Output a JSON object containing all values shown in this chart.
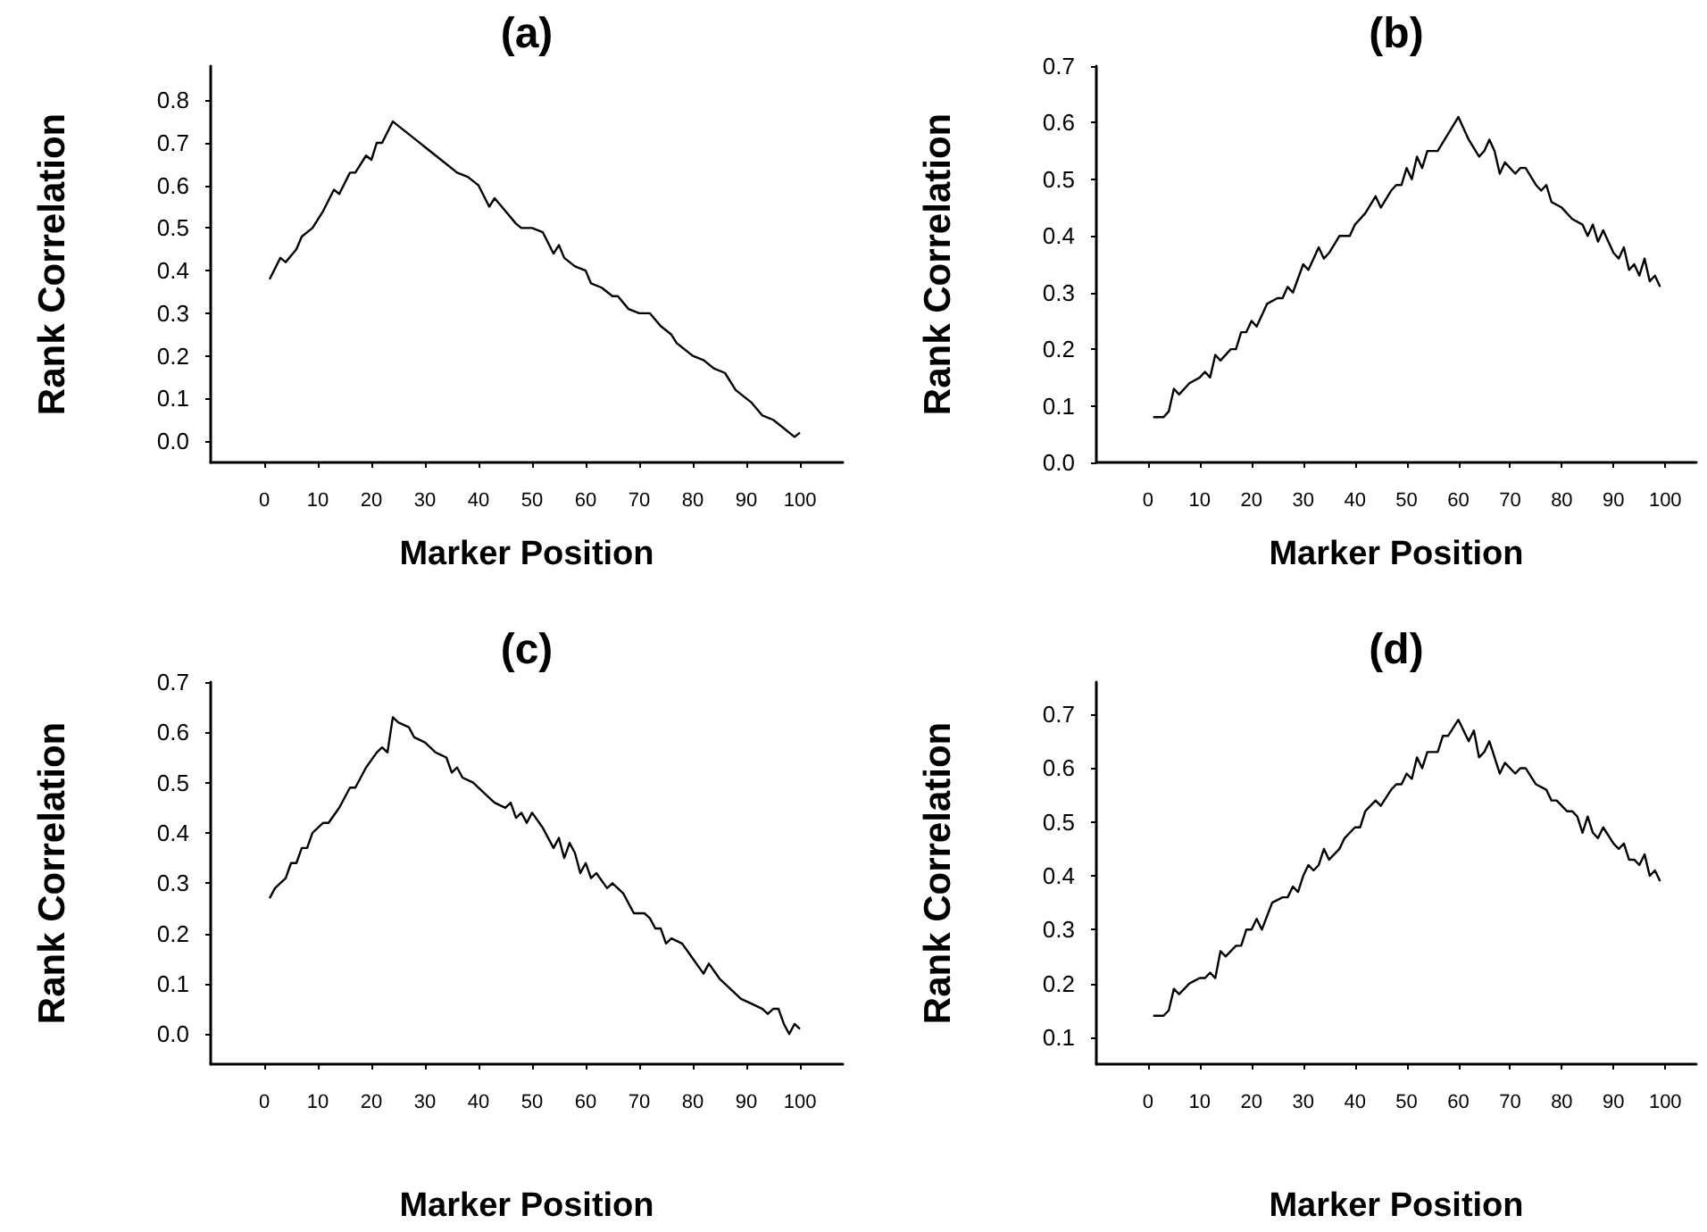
{
  "chart_data": [
    {
      "type": "line",
      "title": "(a)",
      "xlabel": "Marker Position",
      "ylabel": "Rank Correlation",
      "xlim": [
        -10,
        108
      ],
      "xticks": [
        0,
        10,
        20,
        30,
        40,
        50,
        60,
        70,
        80,
        90,
        100
      ],
      "ylim": [
        -0.05,
        0.88
      ],
      "yticks": [
        {
          "value": 0,
          "label": "0.0"
        },
        {
          "value": 0.1,
          "label": "0.1"
        },
        {
          "value": 0.2,
          "label": "0.2"
        },
        {
          "value": 0.3,
          "label": "0.3"
        },
        {
          "value": 0.4,
          "label": "0.4"
        },
        {
          "value": 0.5,
          "label": "0.5"
        },
        {
          "value": 0.6,
          "label": "0.6"
        },
        {
          "value": 0.7,
          "label": "0.7"
        },
        {
          "value": 0.8,
          "label": "0.8"
        }
      ],
      "x": [
        1,
        3,
        4,
        6,
        7,
        9,
        11,
        13,
        14,
        16,
        17,
        19,
        20,
        21,
        22,
        24,
        25,
        27,
        29,
        30,
        32,
        34,
        36,
        38,
        40,
        42,
        43,
        45,
        47,
        48,
        50,
        52,
        54,
        55,
        56,
        58,
        60,
        61,
        63,
        65,
        66,
        68,
        70,
        72,
        74,
        76,
        77,
        79,
        80,
        82,
        84,
        86,
        88,
        90,
        91,
        93,
        95,
        97,
        98,
        99,
        100
      ],
      "series": [
        {
          "color": "#000000",
          "values": [
            0.38,
            0.43,
            0.42,
            0.45,
            0.48,
            0.5,
            0.54,
            0.59,
            0.58,
            0.63,
            0.63,
            0.67,
            0.66,
            0.7,
            0.7,
            0.75,
            0.74,
            0.72,
            0.7,
            0.69,
            0.67,
            0.65,
            0.63,
            0.62,
            0.6,
            0.55,
            0.57,
            0.54,
            0.51,
            0.5,
            0.5,
            0.49,
            0.44,
            0.46,
            0.43,
            0.41,
            0.4,
            0.37,
            0.36,
            0.34,
            0.34,
            0.31,
            0.3,
            0.3,
            0.27,
            0.25,
            0.23,
            0.21,
            0.2,
            0.19,
            0.17,
            0.16,
            0.12,
            0.1,
            0.09,
            0.06,
            0.05,
            0.03,
            0.02,
            0.01,
            0.02
          ]
        }
      ]
    },
    {
      "type": "line",
      "title": "(b)",
      "xlabel": "Marker Position",
      "ylabel": "Rank Correlation",
      "xlim": [
        -10,
        106
      ],
      "xticks": [
        0,
        10,
        20,
        30,
        40,
        50,
        60,
        70,
        80,
        90,
        100
      ],
      "ylim": [
        0,
        0.7
      ],
      "yticks": [
        {
          "value": 0,
          "label": "0.0"
        },
        {
          "value": 0.1,
          "label": "0.1"
        },
        {
          "value": 0.2,
          "label": "0.2"
        },
        {
          "value": 0.3,
          "label": "0.3"
        },
        {
          "value": 0.4,
          "label": "0.4"
        },
        {
          "value": 0.5,
          "label": "0.5"
        },
        {
          "value": 0.6,
          "label": "0.6"
        },
        {
          "value": 0.7,
          "label": "0.7"
        }
      ],
      "x": [
        1,
        3,
        4,
        5,
        6,
        8,
        10,
        11,
        12,
        13,
        14,
        16,
        17,
        18,
        19,
        20,
        21,
        23,
        25,
        26,
        27,
        28,
        30,
        31,
        32,
        33,
        34,
        35,
        37,
        38,
        39,
        40,
        42,
        44,
        45,
        47,
        48,
        49,
        50,
        51,
        52,
        53,
        54,
        56,
        58,
        60,
        62,
        64,
        65,
        66,
        67,
        68,
        69,
        71,
        72,
        73,
        75,
        76,
        77,
        78,
        80,
        82,
        84,
        85,
        86,
        87,
        88,
        90,
        91,
        92,
        93,
        94,
        95,
        96,
        97,
        98,
        99
      ],
      "series": [
        {
          "color": "#000000",
          "values": [
            0.08,
            0.08,
            0.09,
            0.13,
            0.12,
            0.14,
            0.15,
            0.16,
            0.15,
            0.19,
            0.18,
            0.2,
            0.2,
            0.23,
            0.23,
            0.25,
            0.24,
            0.28,
            0.29,
            0.29,
            0.31,
            0.3,
            0.35,
            0.34,
            0.36,
            0.38,
            0.36,
            0.37,
            0.4,
            0.4,
            0.4,
            0.42,
            0.44,
            0.47,
            0.45,
            0.48,
            0.49,
            0.49,
            0.52,
            0.5,
            0.54,
            0.52,
            0.55,
            0.55,
            0.58,
            0.61,
            0.57,
            0.54,
            0.55,
            0.57,
            0.55,
            0.51,
            0.53,
            0.51,
            0.52,
            0.52,
            0.49,
            0.48,
            0.49,
            0.46,
            0.45,
            0.43,
            0.42,
            0.4,
            0.42,
            0.39,
            0.41,
            0.37,
            0.36,
            0.38,
            0.34,
            0.35,
            0.33,
            0.36,
            0.32,
            0.33,
            0.31
          ]
        }
      ]
    },
    {
      "type": "line",
      "title": "(c)",
      "xlabel": "Marker Position",
      "ylabel": "Rank Correlation",
      "xlim": [
        -10,
        108
      ],
      "xticks": [
        0,
        10,
        20,
        30,
        40,
        50,
        60,
        70,
        80,
        90,
        100
      ],
      "ylim": [
        -0.06,
        0.7
      ],
      "yticks": [
        {
          "value": 0,
          "label": "0.0"
        },
        {
          "value": 0.1,
          "label": "0.1"
        },
        {
          "value": 0.2,
          "label": "0.2"
        },
        {
          "value": 0.3,
          "label": "0.3"
        },
        {
          "value": 0.4,
          "label": "0.4"
        },
        {
          "value": 0.5,
          "label": "0.5"
        },
        {
          "value": 0.6,
          "label": "0.6"
        },
        {
          "value": 0.7,
          "label": "0.7"
        }
      ],
      "x": [
        1,
        2,
        4,
        5,
        6,
        7,
        8,
        9,
        11,
        12,
        14,
        16,
        17,
        19,
        21,
        22,
        23,
        24,
        25,
        27,
        28,
        30,
        32,
        34,
        35,
        36,
        37,
        39,
        40,
        42,
        43,
        45,
        46,
        47,
        48,
        49,
        50,
        52,
        53,
        54,
        55,
        56,
        57,
        58,
        59,
        60,
        61,
        62,
        64,
        65,
        67,
        69,
        71,
        72,
        73,
        74,
        75,
        76,
        78,
        80,
        82,
        83,
        85,
        87,
        89,
        91,
        93,
        94,
        95,
        96,
        97,
        98,
        99,
        100
      ],
      "series": [
        {
          "color": "#000000",
          "values": [
            0.27,
            0.29,
            0.31,
            0.34,
            0.34,
            0.37,
            0.37,
            0.4,
            0.42,
            0.42,
            0.45,
            0.49,
            0.49,
            0.53,
            0.56,
            0.57,
            0.56,
            0.63,
            0.62,
            0.61,
            0.59,
            0.58,
            0.56,
            0.55,
            0.52,
            0.53,
            0.51,
            0.5,
            0.49,
            0.47,
            0.46,
            0.45,
            0.46,
            0.43,
            0.44,
            0.42,
            0.44,
            0.41,
            0.39,
            0.37,
            0.39,
            0.35,
            0.38,
            0.36,
            0.32,
            0.34,
            0.31,
            0.32,
            0.29,
            0.3,
            0.28,
            0.24,
            0.24,
            0.23,
            0.21,
            0.21,
            0.18,
            0.19,
            0.18,
            0.15,
            0.12,
            0.14,
            0.11,
            0.09,
            0.07,
            0.06,
            0.05,
            0.04,
            0.05,
            0.05,
            0.02,
            0.0,
            0.02,
            0.01
          ]
        }
      ]
    },
    {
      "type": "line",
      "title": "(d)",
      "xlabel": "Marker Position",
      "ylabel": "Rank Correlation",
      "xlim": [
        -10,
        106
      ],
      "xticks": [
        0,
        10,
        20,
        30,
        40,
        50,
        60,
        70,
        80,
        90,
        100
      ],
      "ylim": [
        0.05,
        0.76
      ],
      "yticks": [
        {
          "value": 0.1,
          "label": "0.1"
        },
        {
          "value": 0.2,
          "label": "0.2"
        },
        {
          "value": 0.3,
          "label": "0.3"
        },
        {
          "value": 0.4,
          "label": "0.4"
        },
        {
          "value": 0.5,
          "label": "0.5"
        },
        {
          "value": 0.6,
          "label": "0.6"
        },
        {
          "value": 0.7,
          "label": "0.7"
        }
      ],
      "x": [
        1,
        3,
        4,
        5,
        6,
        8,
        10,
        11,
        12,
        13,
        14,
        15,
        17,
        18,
        19,
        20,
        21,
        22,
        24,
        26,
        27,
        28,
        29,
        30,
        31,
        32,
        33,
        34,
        35,
        37,
        38,
        40,
        41,
        42,
        43,
        44,
        45,
        47,
        48,
        49,
        50,
        51,
        52,
        53,
        54,
        56,
        57,
        58,
        60,
        61,
        62,
        63,
        64,
        65,
        66,
        67,
        68,
        69,
        71,
        72,
        73,
        75,
        77,
        78,
        79,
        81,
        82,
        83,
        84,
        85,
        86,
        87,
        88,
        90,
        91,
        92,
        93,
        94,
        95,
        96,
        97,
        98,
        99
      ],
      "series": [
        {
          "color": "#000000",
          "values": [
            0.14,
            0.14,
            0.15,
            0.19,
            0.18,
            0.2,
            0.21,
            0.21,
            0.22,
            0.21,
            0.26,
            0.25,
            0.27,
            0.27,
            0.3,
            0.3,
            0.32,
            0.3,
            0.35,
            0.36,
            0.36,
            0.38,
            0.37,
            0.4,
            0.42,
            0.41,
            0.42,
            0.45,
            0.43,
            0.45,
            0.47,
            0.49,
            0.49,
            0.52,
            0.53,
            0.54,
            0.53,
            0.56,
            0.57,
            0.57,
            0.59,
            0.58,
            0.62,
            0.6,
            0.63,
            0.63,
            0.66,
            0.66,
            0.69,
            0.67,
            0.65,
            0.67,
            0.62,
            0.63,
            0.65,
            0.62,
            0.59,
            0.61,
            0.59,
            0.6,
            0.6,
            0.57,
            0.56,
            0.54,
            0.54,
            0.52,
            0.52,
            0.51,
            0.48,
            0.51,
            0.48,
            0.47,
            0.49,
            0.46,
            0.45,
            0.46,
            0.43,
            0.43,
            0.42,
            0.44,
            0.4,
            0.41,
            0.39
          ]
        }
      ]
    }
  ]
}
